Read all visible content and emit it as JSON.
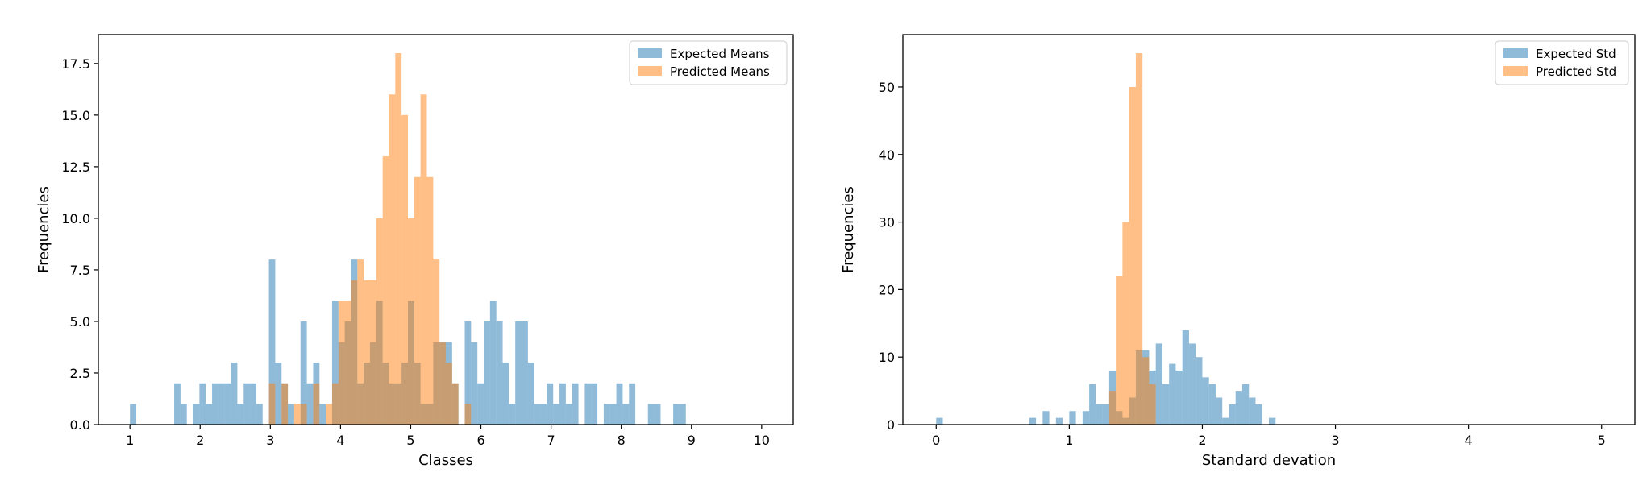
{
  "chart_data": [
    {
      "type": "histogram",
      "xlabel": "Classes",
      "ylabel": "Frequencies",
      "xlim": [
        0.55,
        10.45
      ],
      "ylim": [
        0,
        18.9
      ],
      "xticks": [
        "1",
        "2",
        "3",
        "4",
        "5",
        "6",
        "7",
        "8",
        "9",
        "10"
      ],
      "yticks": [
        "0.0",
        "2.5",
        "5.0",
        "7.5",
        "10.0",
        "12.5",
        "15.0",
        "17.5"
      ],
      "xtick_values": [
        1,
        2,
        3,
        4,
        5,
        6,
        7,
        8,
        9,
        10
      ],
      "ytick_values": [
        0,
        2.5,
        5,
        7.5,
        10,
        12.5,
        15,
        17.5
      ],
      "legend_position": "top-right",
      "bin_start": 1.0,
      "bin_width": 0.09,
      "series": [
        {
          "name": "Expected Means",
          "color": "#1f77b4",
          "values": [
            1,
            0,
            0,
            0,
            0,
            0,
            0,
            2,
            1,
            0,
            1,
            2,
            1,
            2,
            2,
            2,
            3,
            1,
            2,
            2,
            1,
            0,
            8,
            3,
            2,
            1,
            0,
            5,
            2,
            3,
            1,
            0,
            6,
            4,
            5,
            8,
            2,
            3,
            4,
            6,
            3,
            2,
            2,
            3,
            6,
            3,
            1,
            1,
            4,
            4,
            4,
            2,
            0,
            5,
            4,
            2,
            5,
            6,
            5,
            3,
            1,
            5,
            5,
            3,
            1,
            1,
            2,
            1,
            2,
            1,
            2,
            0,
            2,
            2,
            0,
            1,
            1,
            2,
            1,
            2,
            0,
            0,
            1,
            1,
            0,
            0,
            1,
            1
          ]
        },
        {
          "name": "Predicted Means",
          "color": "#ff7f0e",
          "values": [
            0,
            0,
            0,
            0,
            0,
            0,
            0,
            0,
            0,
            0,
            0,
            0,
            0,
            0,
            0,
            0,
            0,
            0,
            0,
            0,
            0,
            0,
            2,
            0,
            2,
            0,
            1,
            1,
            0,
            2,
            0,
            1,
            2,
            6,
            6,
            7,
            8,
            7,
            7,
            10,
            13,
            16,
            18,
            15,
            10,
            12,
            16,
            12,
            8,
            4,
            3,
            2,
            0,
            1
          ]
        }
      ]
    },
    {
      "type": "histogram",
      "xlabel": "Standard devation",
      "ylabel": "Frequencies",
      "xlim": [
        -0.25,
        5.25
      ],
      "ylim": [
        0,
        57.75
      ],
      "xticks": [
        "0",
        "1",
        "2",
        "3",
        "4",
        "5"
      ],
      "yticks": [
        "0",
        "10",
        "20",
        "30",
        "40",
        "50"
      ],
      "xtick_values": [
        0,
        1,
        2,
        3,
        4,
        5
      ],
      "ytick_values": [
        0,
        10,
        20,
        30,
        40,
        50
      ],
      "legend_position": "top-right",
      "bin_start": 0.0,
      "bin_width": 0.05,
      "series": [
        {
          "name": "Expected Std",
          "color": "#1f77b4",
          "values": [
            1,
            0,
            0,
            0,
            0,
            0,
            0,
            0,
            0,
            0,
            0,
            0,
            0,
            0,
            1,
            0,
            2,
            0,
            1,
            0,
            2,
            0,
            2,
            6,
            3,
            3,
            8,
            2,
            1,
            4,
            11,
            11,
            8,
            12,
            6,
            9,
            8,
            14,
            12,
            10,
            7,
            6,
            4,
            1,
            3,
            5,
            6,
            4,
            3,
            0,
            1
          ]
        },
        {
          "name": "Predicted Std",
          "color": "#ff7f0e",
          "values": [
            0,
            0,
            0,
            0,
            0,
            0,
            0,
            0,
            0,
            0,
            0,
            0,
            0,
            0,
            0,
            0,
            0,
            0,
            0,
            0,
            0,
            0,
            0,
            0,
            0,
            0,
            5,
            22,
            30,
            50,
            55,
            10,
            6,
            0,
            0,
            0,
            0,
            0,
            0,
            0,
            0,
            0,
            0,
            0,
            0,
            0,
            0,
            0,
            0,
            0,
            0
          ]
        }
      ]
    }
  ]
}
